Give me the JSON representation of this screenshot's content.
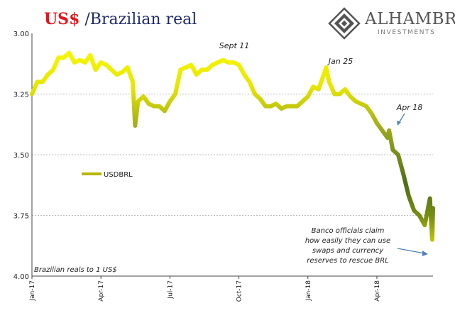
{
  "title": {
    "part1": "US$",
    "part2": " /Brazilian real"
  },
  "logo": {
    "name": "ALHAMBRA",
    "subtitle": "INVESTMENTS"
  },
  "colors": {
    "usd": "#e8141c",
    "brl": "#1f2a6b",
    "grid": "#bdbdbd",
    "arrow": "#4f81bd",
    "line_light": "#ffff00",
    "line_dark": "#556b14"
  },
  "chart_data": {
    "type": "line",
    "title": "US$ /Brazilian real",
    "ylabel": "Brazilian reals to 1 US$",
    "ylim": [
      3.0,
      4.0
    ],
    "y_inverted": true,
    "yticks": [
      "3.00",
      "3.25",
      "3.50",
      "3.75",
      "4.00"
    ],
    "xticks": [
      "Jan-17",
      "Apr-17",
      "Jul-17",
      "Oct-17",
      "Jan-18",
      "Apr-18"
    ],
    "grid": true,
    "legend": {
      "entries": [
        "USDBRL"
      ],
      "placement": "left"
    },
    "series": [
      {
        "name": "USDBRL",
        "x": [
          "2017-01-02",
          "2017-01-09",
          "2017-01-16",
          "2017-01-23",
          "2017-01-30",
          "2017-02-06",
          "2017-02-13",
          "2017-02-20",
          "2017-02-27",
          "2017-03-06",
          "2017-03-13",
          "2017-03-20",
          "2017-03-27",
          "2017-04-03",
          "2017-04-10",
          "2017-04-17",
          "2017-04-24",
          "2017-05-01",
          "2017-05-08",
          "2017-05-15",
          "2017-05-18",
          "2017-05-22",
          "2017-05-29",
          "2017-06-05",
          "2017-06-12",
          "2017-06-19",
          "2017-06-26",
          "2017-07-03",
          "2017-07-10",
          "2017-07-17",
          "2017-07-24",
          "2017-07-31",
          "2017-08-07",
          "2017-08-14",
          "2017-08-21",
          "2017-08-28",
          "2017-09-04",
          "2017-09-11",
          "2017-09-18",
          "2017-09-25",
          "2017-10-02",
          "2017-10-09",
          "2017-10-16",
          "2017-10-23",
          "2017-10-30",
          "2017-11-06",
          "2017-11-13",
          "2017-11-20",
          "2017-11-27",
          "2017-12-04",
          "2017-12-11",
          "2017-12-18",
          "2017-12-25",
          "2018-01-01",
          "2018-01-08",
          "2018-01-15",
          "2018-01-22",
          "2018-01-25",
          "2018-01-29",
          "2018-02-05",
          "2018-02-12",
          "2018-02-19",
          "2018-02-26",
          "2018-03-05",
          "2018-03-12",
          "2018-03-19",
          "2018-03-26",
          "2018-04-02",
          "2018-04-09",
          "2018-04-16",
          "2018-04-18",
          "2018-04-23",
          "2018-04-30",
          "2018-05-07",
          "2018-05-14",
          "2018-05-21",
          "2018-05-28",
          "2018-06-04",
          "2018-06-11",
          "2018-06-14",
          "2018-06-15"
        ],
        "values": [
          3.25,
          3.2,
          3.2,
          3.17,
          3.15,
          3.1,
          3.1,
          3.08,
          3.12,
          3.11,
          3.12,
          3.09,
          3.15,
          3.12,
          3.13,
          3.15,
          3.17,
          3.16,
          3.14,
          3.2,
          3.38,
          3.28,
          3.26,
          3.29,
          3.3,
          3.3,
          3.32,
          3.28,
          3.25,
          3.15,
          3.14,
          3.13,
          3.17,
          3.15,
          3.15,
          3.13,
          3.12,
          3.11,
          3.12,
          3.12,
          3.13,
          3.17,
          3.2,
          3.25,
          3.27,
          3.3,
          3.3,
          3.29,
          3.31,
          3.3,
          3.3,
          3.3,
          3.28,
          3.26,
          3.22,
          3.23,
          3.17,
          3.14,
          3.2,
          3.25,
          3.25,
          3.23,
          3.26,
          3.28,
          3.29,
          3.3,
          3.33,
          3.37,
          3.4,
          3.43,
          3.4,
          3.48,
          3.5,
          3.58,
          3.67,
          3.73,
          3.75,
          3.79,
          3.68,
          3.85,
          3.72
        ]
      }
    ],
    "annotations": [
      {
        "text": "Sept 11",
        "x": "2017-09-11"
      },
      {
        "text": "Jan 25",
        "x": "2018-01-25"
      },
      {
        "text": "Apr 18",
        "x": "2018-04-18"
      }
    ],
    "note": [
      "Banco officials claim",
      "how easily they can use",
      "swaps and currency",
      "reserves to rescue BRL"
    ]
  }
}
